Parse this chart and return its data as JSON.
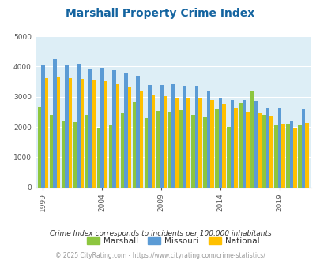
{
  "title": "Marshall Property Crime Index",
  "years": [
    1999,
    2000,
    2001,
    2002,
    2003,
    2004,
    2005,
    2006,
    2007,
    2008,
    2009,
    2010,
    2011,
    2012,
    2013,
    2014,
    2015,
    2016,
    2017,
    2018,
    2019,
    2020,
    2021
  ],
  "marshall": [
    2650,
    2380,
    2200,
    2150,
    2380,
    1950,
    2050,
    2480,
    2850,
    2300,
    2520,
    2500,
    2550,
    2380,
    2350,
    2600,
    2000,
    2780,
    3200,
    2400,
    2050,
    2080,
    2050
  ],
  "missouri": [
    4060,
    4250,
    4060,
    4080,
    3920,
    3950,
    3870,
    3780,
    3700,
    3380,
    3380,
    3400,
    3350,
    3350,
    3170,
    2980,
    2890,
    2880,
    2870,
    2640,
    2640,
    2200,
    2600
  ],
  "national": [
    3610,
    3650,
    3620,
    3590,
    3540,
    3510,
    3450,
    3310,
    3200,
    3050,
    3010,
    2980,
    2950,
    2940,
    2900,
    2750,
    2620,
    2500,
    2460,
    2360,
    2110,
    1960,
    2130
  ],
  "marshall_color": "#8dc63f",
  "missouri_color": "#5b9bd5",
  "national_color": "#ffc000",
  "bg_color": "#ddeef6",
  "ylim": [
    0,
    5000
  ],
  "yticks": [
    0,
    1000,
    2000,
    3000,
    4000,
    5000
  ],
  "xtick_years": [
    1999,
    2004,
    2009,
    2014,
    2019
  ],
  "subtitle": "Crime Index corresponds to incidents per 100,000 inhabitants",
  "footer": "© 2025 CityRating.com - https://www.cityrating.com/crime-statistics/",
  "title_color": "#1464a0",
  "subtitle_color": "#333333",
  "footer_color": "#999999"
}
